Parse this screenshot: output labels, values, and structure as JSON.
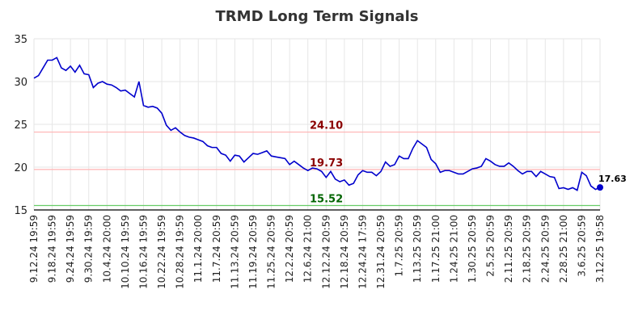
{
  "chart_data": {
    "type": "line",
    "title": "TRMD Long Term Signals",
    "xlabel": "",
    "ylabel": "",
    "ylim": [
      15,
      35
    ],
    "yticks": [
      "15",
      "20",
      "25",
      "30",
      "35"
    ],
    "grid": true,
    "colors": {
      "line": "#0000cc",
      "upper": "#ffb3b3",
      "middle": "#ffb3b3",
      "lower": "#66cc66",
      "upper_text": "#8b0000",
      "middle_text": "#8b0000",
      "lower_text": "#006400",
      "baseline": "#000000"
    },
    "reference_lines": [
      {
        "name": "upper",
        "value": 24.1,
        "label": "24.10"
      },
      {
        "name": "middle",
        "value": 19.73,
        "label": "19.73"
      },
      {
        "name": "lower",
        "value": 15.52,
        "label": "15.52"
      }
    ],
    "x_tick_labels": [
      "9.12.24 19:59",
      "9.18.24 19:59",
      "9.24.24 19:59",
      "9.30.24 19:59",
      "10.4.24 20:00",
      "10.10.24 19:59",
      "10.16.24 19:59",
      "10.22.24 19:59",
      "10.28.24 19:59",
      "11.1.24 20:00",
      "11.7.24 20:59",
      "11.13.24 20:59",
      "11.19.24 20:59",
      "11.25.24 20:59",
      "12.2.24 20:59",
      "12.6.24 21:00",
      "12.12.24 20:59",
      "12.18.24 20:59",
      "12.24.24 17:59",
      "12.31.24 20:59",
      "1.7.25 20:59",
      "1.13.25 20:59",
      "1.17.25 21:00",
      "1.24.25 21:00",
      "1.30.25 20:59",
      "2.5.25 20:59",
      "2.11.25 20:59",
      "2.18.25 20:59",
      "2.24.25 20:59",
      "2.28.25 21:00",
      "3.6.25 20:59",
      "3.12.25 19:58"
    ],
    "values": [
      30.4,
      30.7,
      31.6,
      32.5,
      32.5,
      32.8,
      31.6,
      31.3,
      31.8,
      31.1,
      31.9,
      30.9,
      30.8,
      29.3,
      29.8,
      30.0,
      29.7,
      29.6,
      29.3,
      28.9,
      29.0,
      28.6,
      28.2,
      30.0,
      27.2,
      27.0,
      27.1,
      26.9,
      26.3,
      24.9,
      24.3,
      24.6,
      24.1,
      23.7,
      23.5,
      23.4,
      23.2,
      23.0,
      22.5,
      22.3,
      22.3,
      21.6,
      21.4,
      20.7,
      21.4,
      21.3,
      20.6,
      21.1,
      21.6,
      21.5,
      21.7,
      21.9,
      21.3,
      21.2,
      21.1,
      21.0,
      20.3,
      20.7,
      20.3,
      19.9,
      19.6,
      19.9,
      19.8,
      19.5,
      18.8,
      19.5,
      18.6,
      18.3,
      18.5,
      17.9,
      18.1,
      19.1,
      19.6,
      19.4,
      19.4,
      19.0,
      19.5,
      20.6,
      20.1,
      20.3,
      21.3,
      21.0,
      21.0,
      22.2,
      23.1,
      22.7,
      22.3,
      20.9,
      20.4,
      19.4,
      19.6,
      19.6,
      19.4,
      19.2,
      19.2,
      19.5,
      19.8,
      19.9,
      20.1,
      21.0,
      20.7,
      20.3,
      20.1,
      20.1,
      20.5,
      20.1,
      19.6,
      19.2,
      19.5,
      19.5,
      18.9,
      19.5,
      19.2,
      18.9,
      18.8,
      17.5,
      17.6,
      17.4,
      17.6,
      17.3,
      19.4,
      19.0,
      17.8,
      17.4,
      17.63
    ],
    "last_value_label": "17.63"
  }
}
